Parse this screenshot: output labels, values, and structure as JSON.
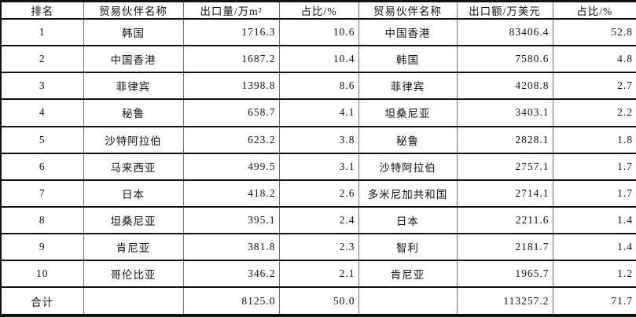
{
  "table": {
    "headers": [
      "排名",
      "贸易伙伴名称",
      "出口量/万m²",
      "占比/%",
      "贸易伙伴名称",
      "出口额/万美元",
      "占比/%"
    ],
    "column_kinds": [
      "center",
      "center",
      "num",
      "num",
      "center",
      "num",
      "num"
    ],
    "column_names": [
      "rank",
      "partner-name",
      "export-volume",
      "share-volume",
      "partner-name",
      "export-value",
      "share-value"
    ],
    "rows": [
      [
        "1",
        "韩国",
        "1716.3",
        "10.6",
        "中国香港",
        "83406.4",
        "52.8"
      ],
      [
        "2",
        "中国香港",
        "1687.2",
        "10.4",
        "韩国",
        "7580.6",
        "4.8"
      ],
      [
        "3",
        "菲律宾",
        "1398.8",
        "8.6",
        "菲律宾",
        "4208.8",
        "2.7"
      ],
      [
        "4",
        "秘鲁",
        "658.7",
        "4.1",
        "坦桑尼亚",
        "3403.1",
        "2.2"
      ],
      [
        "5",
        "沙特阿拉伯",
        "623.2",
        "3.8",
        "秘鲁",
        "2828.1",
        "1.8"
      ],
      [
        "6",
        "马来西亚",
        "499.5",
        "3.1",
        "沙特阿拉伯",
        "2757.1",
        "1.7"
      ],
      [
        "7",
        "日本",
        "418.2",
        "2.6",
        "多米尼加共和国",
        "2714.1",
        "1.7"
      ],
      [
        "8",
        "坦桑尼亚",
        "395.1",
        "2.4",
        "日本",
        "2211.6",
        "1.4"
      ],
      [
        "9",
        "肯尼亚",
        "381.8",
        "2.3",
        "智利",
        "2181.7",
        "1.4"
      ],
      [
        "10",
        "哥伦比亚",
        "346.2",
        "2.1",
        "肯尼亚",
        "1965.7",
        "1.2"
      ],
      [
        "合计",
        "",
        "8125.0",
        "50.0",
        "",
        "113257.2",
        "71.7"
      ]
    ]
  }
}
